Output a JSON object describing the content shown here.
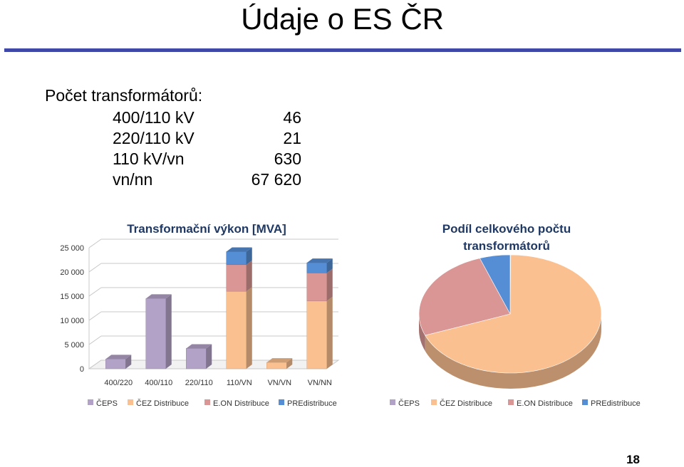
{
  "slide": {
    "title": "Údaje o ES ČR",
    "intro": "Počet transformátorů:",
    "rows": [
      {
        "label": "400/110 kV",
        "value": "46"
      },
      {
        "label": "220/110 kV",
        "value": "21"
      },
      {
        "label": "110 kV/vn",
        "value": "630"
      },
      {
        "label": "vn/nn",
        "value": "67 620"
      }
    ],
    "page_number": "18"
  },
  "colors": {
    "title_rule": "#3f48a6",
    "CEPS": "#b3a2c7",
    "CEZ": "#fac090",
    "EON": "#d99694",
    "PRE": "#558ed5"
  },
  "chart_data": [
    {
      "type": "bar",
      "stacked": true,
      "title": "Transformační výkon [MVA]",
      "categories": [
        "400/220",
        "400/110",
        "220/110",
        "110/VN",
        "VN/VN",
        "VN/NN"
      ],
      "y_ticks": [
        "0",
        "5 000",
        "10 000",
        "15 000",
        "20 000",
        "25 000"
      ],
      "ylim": [
        0,
        25000
      ],
      "grid": true,
      "legend_position": "bottom",
      "series": [
        {
          "name": "ČEPS",
          "color": "#b3a2c7",
          "values": [
            2000,
            14500,
            4200,
            0,
            0,
            0
          ]
        },
        {
          "name": "ČEZ Distribuce",
          "color": "#fac090",
          "values": [
            0,
            0,
            0,
            16000,
            1300,
            14000
          ]
        },
        {
          "name": "E.ON Distribuce",
          "color": "#d99694",
          "values": [
            0,
            0,
            0,
            5500,
            0,
            5800
          ]
        },
        {
          "name": "PREdistribuce",
          "color": "#558ed5",
          "values": [
            0,
            0,
            0,
            2700,
            0,
            2100
          ]
        }
      ]
    },
    {
      "type": "pie",
      "title": "Podíl celkového počtu transformátorů",
      "legend_position": "bottom",
      "series": [
        {
          "name": "ČEPS",
          "color": "#b3a2c7",
          "value": 0.1
        },
        {
          "name": "ČEZ Distribuce",
          "color": "#fac090",
          "value": 69
        },
        {
          "name": "E.ON Distribuce",
          "color": "#d99694",
          "value": 25.5
        },
        {
          "name": "PREdistribuce",
          "color": "#558ed5",
          "value": 5.4
        }
      ]
    }
  ]
}
